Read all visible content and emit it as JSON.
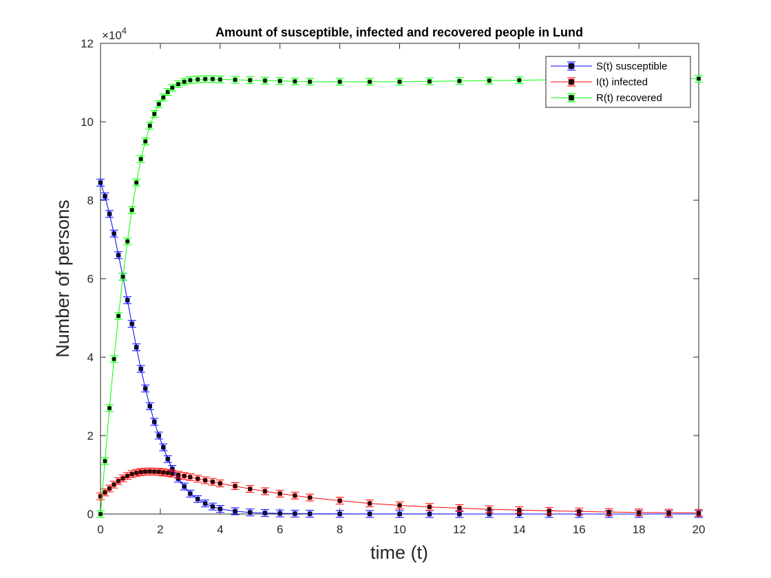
{
  "chart_data": {
    "type": "line",
    "title": "Amount of susceptible, infected and recovered people in Lund",
    "xlabel": "time (t)",
    "ylabel": "Number of persons",
    "y_exponent_label": "×10",
    "y_exponent_power": "4",
    "xlim": [
      0,
      20
    ],
    "ylim": [
      0,
      12
    ],
    "y_scale_multiplier": 10000,
    "x_ticks": [
      "0",
      "2",
      "4",
      "6",
      "8",
      "10",
      "12",
      "14",
      "16",
      "18",
      "20"
    ],
    "y_ticks": [
      "0",
      "2",
      "4",
      "6",
      "8",
      "10",
      "12"
    ],
    "grid": false,
    "legend_position": "top-right",
    "x": [
      0,
      0.15,
      0.3,
      0.45,
      0.6,
      0.75,
      0.9,
      1.05,
      1.2,
      1.35,
      1.5,
      1.65,
      1.8,
      1.95,
      2.1,
      2.25,
      2.4,
      2.6,
      2.8,
      3.0,
      3.25,
      3.5,
      3.75,
      4.0,
      4.5,
      5.0,
      5.5,
      6.0,
      6.5,
      7.0,
      8.0,
      9.0,
      10.0,
      11.0,
      12.0,
      13.0,
      14.0,
      15.0,
      16.0,
      17.0,
      18.0,
      19.0,
      20.0
    ],
    "series": [
      {
        "name": "S(t) susceptible",
        "color": "#0000ff",
        "values": [
          8.45,
          8.1,
          7.65,
          7.15,
          6.6,
          6.05,
          5.45,
          4.85,
          4.25,
          3.7,
          3.2,
          2.75,
          2.35,
          2.0,
          1.7,
          1.4,
          1.15,
          0.9,
          0.7,
          0.52,
          0.38,
          0.27,
          0.19,
          0.13,
          0.07,
          0.04,
          0.025,
          0.015,
          0.01,
          0.006,
          0.003,
          0.002,
          0.001,
          0.001,
          0.0005,
          0.0003,
          0.0002,
          0.0001,
          0.0001,
          0.0,
          0.0,
          0.0,
          0.0
        ]
      },
      {
        "name": "I(t) infected",
        "color": "#ff0000",
        "values": [
          0.45,
          0.55,
          0.65,
          0.75,
          0.84,
          0.91,
          0.97,
          1.02,
          1.05,
          1.07,
          1.08,
          1.085,
          1.08,
          1.075,
          1.06,
          1.05,
          1.03,
          1.0,
          0.97,
          0.94,
          0.9,
          0.86,
          0.82,
          0.78,
          0.71,
          0.64,
          0.58,
          0.52,
          0.47,
          0.42,
          0.34,
          0.27,
          0.22,
          0.18,
          0.15,
          0.12,
          0.1,
          0.08,
          0.065,
          0.05,
          0.04,
          0.035,
          0.03
        ]
      },
      {
        "name": "R(t) recovered",
        "color": "#00ff00",
        "values": [
          0.0,
          1.35,
          2.7,
          3.95,
          5.05,
          6.05,
          6.95,
          7.75,
          8.45,
          9.05,
          9.5,
          9.9,
          10.2,
          10.45,
          10.62,
          10.76,
          10.87,
          10.96,
          11.02,
          11.06,
          11.08,
          11.09,
          11.09,
          11.08,
          11.07,
          11.06,
          11.05,
          11.04,
          11.03,
          11.02,
          11.02,
          11.02,
          11.02,
          11.03,
          11.04,
          11.05,
          11.06,
          11.07,
          11.08,
          11.09,
          11.1,
          11.1,
          11.1
        ]
      }
    ]
  }
}
